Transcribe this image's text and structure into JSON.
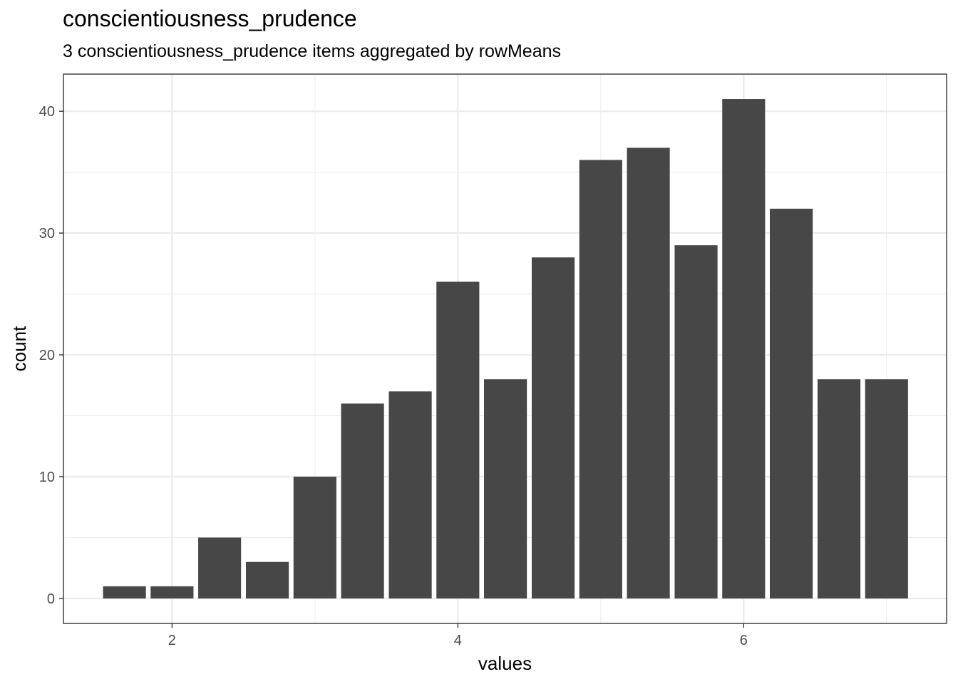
{
  "chart_data": {
    "type": "bar",
    "title": "conscientiousness_prudence",
    "subtitle": "3 conscientiousness_prudence items aggregated by rowMeans",
    "xlabel": "values",
    "ylabel": "count",
    "x": [
      1.667,
      2.0,
      2.333,
      2.667,
      3.0,
      3.333,
      3.667,
      4.0,
      4.333,
      4.667,
      5.0,
      5.333,
      5.667,
      6.0,
      6.333,
      6.667,
      7.0
    ],
    "values": [
      1,
      1,
      5,
      3,
      10,
      16,
      17,
      26,
      18,
      28,
      36,
      37,
      29,
      41,
      32,
      18,
      18
    ],
    "bar_width": 0.3,
    "xlim": [
      1.24,
      7.42
    ],
    "ylim": [
      -2.05,
      43.05
    ],
    "x_ticks": [
      2,
      4,
      6
    ],
    "y_ticks": [
      0,
      10,
      20,
      30,
      40
    ],
    "grid": true,
    "bar_color": "#474747",
    "grid_color": "#ebebeb"
  }
}
